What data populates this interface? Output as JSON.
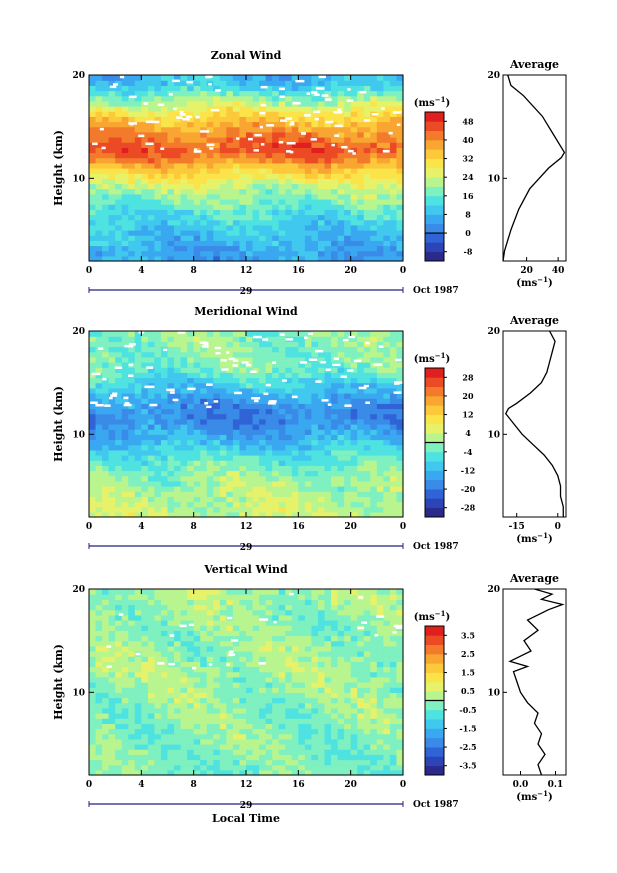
{
  "chart_data": [
    {
      "type": "heatmap",
      "title": "Zonal Wind",
      "ylabel": "Height (km)",
      "unit_label": "(ms",
      "unit_exp": "−1",
      "xlim": [
        0,
        24
      ],
      "ylim": [
        2,
        20
      ],
      "x_ticks": [
        "0",
        "4",
        "8",
        "12",
        "16",
        "20",
        "0"
      ],
      "y_ticks": [
        "10",
        "20"
      ],
      "date_label": "29",
      "month_label": "Oct 1987",
      "colorbar_ticks": [
        "-8",
        "0",
        "8",
        "16",
        "24",
        "32",
        "40",
        "48"
      ],
      "colorbar_range": [
        -12,
        52
      ],
      "contour_level": 0,
      "profile_by_height": {
        "height_km": [
          2,
          3,
          5,
          7,
          9,
          10,
          11,
          12,
          13,
          14,
          16,
          18,
          19,
          20
        ],
        "value": [
          5,
          6,
          10,
          15,
          22,
          28,
          34,
          42,
          45,
          42,
          32,
          18,
          10,
          8
        ]
      },
      "average": {
        "title": "Average",
        "x_ticks": [
          "20",
          "40"
        ],
        "xlim": [
          5,
          45
        ],
        "xlabel": "(ms",
        "height_km": [
          2,
          3,
          5,
          7,
          9,
          10,
          11,
          12,
          12.5,
          13,
          14,
          16,
          18,
          19,
          20
        ],
        "value": [
          5,
          6,
          10,
          15,
          22,
          28,
          34,
          42,
          44,
          42,
          38,
          30,
          18,
          10,
          8
        ]
      }
    },
    {
      "type": "heatmap",
      "title": "Meridional Wind",
      "ylabel": "Height (km)",
      "unit_label": "(ms",
      "unit_exp": "−1",
      "xlim": [
        0,
        24
      ],
      "ylim": [
        2,
        20
      ],
      "x_ticks": [
        "0",
        "4",
        "8",
        "12",
        "16",
        "20",
        "0"
      ],
      "y_ticks": [
        "10",
        "20"
      ],
      "date_label": "29",
      "month_label": "Oct 1987",
      "colorbar_ticks": [
        "-28",
        "-20",
        "-12",
        "-4",
        "4",
        "12",
        "20",
        "28"
      ],
      "colorbar_range": [
        -32,
        32
      ],
      "contour_level": 0,
      "profile_by_height": {
        "height_km": [
          2,
          4,
          6,
          8,
          9,
          10,
          11,
          12,
          13,
          14,
          15,
          16,
          17,
          18,
          19,
          20
        ],
        "value": [
          3,
          2,
          0,
          -6,
          -10,
          -14,
          -17,
          -18,
          -16,
          -12,
          -8,
          -4,
          -2,
          -2,
          -1,
          -1
        ]
      },
      "average": {
        "title": "Average",
        "x_ticks": [
          "-15",
          "0"
        ],
        "xlim": [
          -20,
          3
        ],
        "xlabel": "(ms",
        "height_km": [
          2,
          3,
          4,
          5,
          6,
          7,
          8,
          9,
          10,
          11,
          12,
          12.5,
          13,
          14,
          15,
          16,
          17,
          18,
          19,
          20
        ],
        "value": [
          2,
          2,
          1,
          1,
          0,
          -2,
          -5,
          -9,
          -13,
          -16,
          -19,
          -18,
          -15,
          -10,
          -6,
          -4,
          -3,
          -2,
          -1,
          -3
        ]
      }
    },
    {
      "type": "heatmap",
      "title": "Vertical Wind",
      "ylabel": "Height (km)",
      "unit_label": "(ms",
      "unit_exp": "−1",
      "xlabel": "Local Time",
      "xlim": [
        0,
        24
      ],
      "ylim": [
        2,
        20
      ],
      "x_ticks": [
        "0",
        "4",
        "8",
        "12",
        "16",
        "20",
        "0"
      ],
      "y_ticks": [
        "10",
        "20"
      ],
      "date_label": "29",
      "month_label": "Oct 1987",
      "colorbar_ticks": [
        "-3.5",
        "-2.5",
        "-1.5",
        "-0.5",
        "0.5",
        "1.5",
        "2.5",
        "3.5"
      ],
      "colorbar_range": [
        -4,
        4
      ],
      "contour_level": 0,
      "profile_by_height": {
        "height_km": [
          2,
          5,
          8,
          10,
          12,
          14,
          16,
          18,
          20
        ],
        "value": [
          -0.3,
          -0.2,
          -0.1,
          0.0,
          0.1,
          0.0,
          -0.1,
          0.0,
          0.1
        ]
      },
      "average": {
        "title": "Average",
        "x_ticks": [
          "0.0",
          "0.1"
        ],
        "xlim": [
          -0.05,
          0.13
        ],
        "xlabel": "(ms",
        "height_km": [
          2,
          3,
          4,
          5,
          6,
          7,
          8,
          9,
          10,
          11,
          12,
          12.5,
          13,
          14,
          15,
          16,
          17,
          18,
          18.5,
          19,
          19.5,
          20
        ],
        "value": [
          0.06,
          0.05,
          0.07,
          0.05,
          0.06,
          0.04,
          0.05,
          0.02,
          0.0,
          -0.01,
          -0.02,
          0.02,
          -0.03,
          0.03,
          0.01,
          0.05,
          0.02,
          0.08,
          0.12,
          0.06,
          0.09,
          0.04
        ]
      }
    }
  ]
}
